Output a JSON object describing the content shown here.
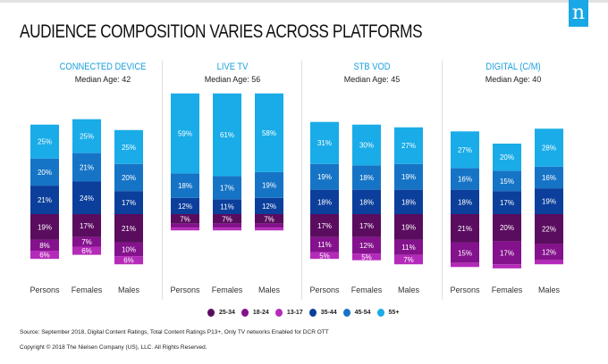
{
  "header": {
    "title": "AUDIENCE COMPOSITION VARIES ACROSS PLATFORMS",
    "logo_letter": "n",
    "logo_color": "#1aa7e6"
  },
  "chart_data": {
    "type": "bar",
    "stacked": true,
    "title": "AUDIENCE COMPOSITION VARIES ACROSS PLATFORMS",
    "unit": "%",
    "age_groups": [
      "55+",
      "45-54",
      "35-44",
      "25-34",
      "18-24",
      "13-17"
    ],
    "colors": {
      "55+": "#19ace8",
      "45-54": "#1674c6",
      "35-44": "#0b3f9b",
      "25-34": "#5a0c5f",
      "18-24": "#84128c",
      "13-17": "#b42ab9"
    },
    "legend_order": [
      "25-34",
      "18-24",
      "13-17",
      "35-44",
      "45-54",
      "55+"
    ],
    "legend_position": "bottom-center",
    "categories": [
      "Persons",
      "Females",
      "Males"
    ],
    "panels": [
      {
        "name": "CONNECTED DEVICE",
        "median_age": "Median Age: 42",
        "bars": [
          {
            "category": "Persons",
            "values": {
              "55+": 25,
              "45-54": 20,
              "35-44": 21,
              "25-34": 19,
              "18-24": 8,
              "13-17": 6
            }
          },
          {
            "category": "Females",
            "values": {
              "55+": 25,
              "45-54": 21,
              "35-44": 24,
              "25-34": 17,
              "18-24": 7,
              "13-17": 6
            }
          },
          {
            "category": "Males",
            "values": {
              "55+": 25,
              "45-54": 20,
              "35-44": 17,
              "25-34": 21,
              "18-24": 10,
              "13-17": 6
            }
          }
        ]
      },
      {
        "name": "LIVE TV",
        "median_age": "Median Age: 56",
        "bars": [
          {
            "category": "Persons",
            "values": {
              "55+": 59,
              "45-54": 18,
              "35-44": 12,
              "25-34": 7,
              "18-24": 3,
              "13-17": 2
            },
            "labeled": [
              "55+",
              "45-54",
              "35-44",
              "25-34"
            ]
          },
          {
            "category": "Females",
            "values": {
              "55+": 61,
              "45-54": 17,
              "35-44": 11,
              "25-34": 7,
              "18-24": 3,
              "13-17": 2
            },
            "labeled": [
              "55+",
              "45-54",
              "35-44",
              "25-34"
            ]
          },
          {
            "category": "Males",
            "values": {
              "55+": 58,
              "45-54": 19,
              "35-44": 12,
              "25-34": 7,
              "18-24": 3,
              "13-17": 2
            },
            "labeled": [
              "55+",
              "45-54",
              "35-44",
              "25-34"
            ]
          }
        ]
      },
      {
        "name": "STB VOD",
        "median_age": "Median Age: 45",
        "bars": [
          {
            "category": "Persons",
            "values": {
              "55+": 31,
              "45-54": 19,
              "35-44": 18,
              "25-34": 17,
              "18-24": 11,
              "13-17": 5
            }
          },
          {
            "category": "Females",
            "values": {
              "55+": 30,
              "45-54": 18,
              "35-44": 18,
              "25-34": 17,
              "18-24": 12,
              "13-17": 5
            }
          },
          {
            "category": "Males",
            "values": {
              "55+": 27,
              "45-54": 19,
              "35-44": 18,
              "25-34": 19,
              "18-24": 11,
              "13-17": 7
            }
          }
        ]
      },
      {
        "name": "DIGITAL (C/M)",
        "median_age": "Median Age: 40",
        "bars": [
          {
            "category": "Persons",
            "values": {
              "55+": 27,
              "45-54": 16,
              "35-44": 18,
              "25-34": 21,
              "18-24": 15,
              "13-17": 3
            },
            "labeled": [
              "55+",
              "45-54",
              "35-44",
              "25-34",
              "18-24"
            ]
          },
          {
            "category": "Females",
            "values": {
              "55+": 20,
              "45-54": 15,
              "35-44": 17,
              "25-34": 20,
              "18-24": 17,
              "13-17": 3
            },
            "labeled": [
              "55+",
              "45-54",
              "35-44",
              "25-34",
              "18-24"
            ]
          },
          {
            "category": "Males",
            "values": {
              "55+": 28,
              "45-54": 16,
              "35-44": 19,
              "25-34": 22,
              "18-24": 12,
              "13-17": 3
            },
            "labeled": [
              "55+",
              "45-54",
              "35-44",
              "25-34",
              "18-24"
            ]
          }
        ]
      }
    ]
  },
  "footer": {
    "source": "Source: September 2018, Digital Content Ratings, Total Content Ratings P13+, Only TV networks Enabled for DCR OTT",
    "copyright": "Copyright © 2018 The Nielsen Company (US), LLC. All Rights Reserved."
  }
}
